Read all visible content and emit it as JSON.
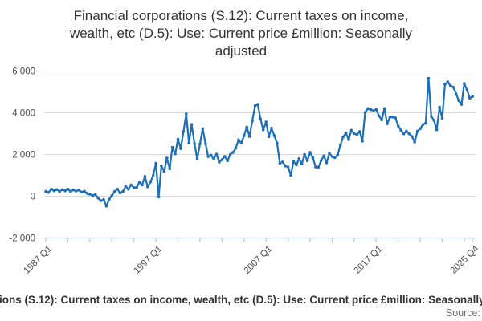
{
  "page": {
    "source_label": "Source:"
  },
  "chart_data": {
    "type": "line",
    "title": "Financial corporations (S.12): Current taxes on income, wealth, etc (D.5): Use: Current price £million: Seasonally adjusted",
    "title_lines": [
      "Financial corporations (S.12): Current taxes on income,",
      "wealth, etc (D.5): Use: Current price £million: Seasonally",
      "adjusted"
    ],
    "unit": "£million",
    "x_frequency": "quarterly",
    "x_range": [
      "1987 Q1",
      "2025 Q4"
    ],
    "ylim": [
      -2000,
      6000
    ],
    "y_ticks": [
      6000,
      4000,
      2000,
      0,
      -2000
    ],
    "y_tick_labels": [
      "6 000",
      "4 000",
      "2 000",
      "0",
      "-2 000"
    ],
    "x_tick_labels": [
      {
        "index": 0,
        "label": "1987 Q1"
      },
      {
        "index": 40,
        "label": "1997 Q1"
      },
      {
        "index": 80,
        "label": "2007 Q1"
      },
      {
        "index": 120,
        "label": "2017 Q1"
      },
      {
        "index": 155,
        "label": "2025 Q4"
      }
    ],
    "minor_tick_every_quarters": 8,
    "grid": "horizontal",
    "legend_position": "bottom",
    "colors": {
      "line": "#1d70b8",
      "grid": "#d9d9d9",
      "axis": "#aec6d8",
      "tick_text": "#4d4d4d",
      "title_text": "#333333",
      "source_text": "#707070"
    },
    "series": [
      {
        "name": "Financial corporations (S.12): Current taxes on income, wealth, etc (D.5): Use: Current price £million: Seasonally adjusted",
        "color": "#1d70b8",
        "values": [
          230,
          180,
          340,
          260,
          320,
          230,
          315,
          260,
          340,
          230,
          300,
          250,
          290,
          200,
          240,
          140,
          100,
          40,
          80,
          -85,
          -215,
          -160,
          -475,
          -155,
          40,
          230,
          340,
          155,
          230,
          470,
          340,
          540,
          410,
          420,
          665,
          540,
          950,
          450,
          680,
          1000,
          1580,
          -30,
          1450,
          1190,
          1830,
          1320,
          2345,
          2030,
          2730,
          2280,
          3100,
          3945,
          2550,
          3435,
          2520,
          1780,
          2500,
          3240,
          2520,
          1900,
          1970,
          1780,
          2010,
          1630,
          1750,
          1900,
          1700,
          2000,
          2100,
          2300,
          2700,
          2550,
          2900,
          3310,
          2860,
          3600,
          4330,
          4400,
          3700,
          3180,
          3560,
          2850,
          3260,
          2900,
          2550,
          1580,
          1640,
          1450,
          1400,
          1000,
          1680,
          1500,
          1800,
          1550,
          2000,
          1700,
          2100,
          1850,
          1400,
          1390,
          1700,
          1930,
          1600,
          2050,
          1900,
          1850,
          1970,
          2450,
          2840,
          3030,
          2710,
          3160,
          3000,
          2950,
          3100,
          2640,
          4010,
          4200,
          4150,
          4100,
          4150,
          3850,
          3660,
          4200,
          3470,
          3790,
          3800,
          3755,
          3370,
          3160,
          2990,
          3120,
          2990,
          2865,
          2600,
          3120,
          3240,
          3430,
          3500,
          5650,
          3830,
          3640,
          3180,
          4270,
          3730,
          5360,
          5480,
          5290,
          5230,
          4910,
          4590,
          4400,
          5400,
          5100,
          4700,
          4780
        ]
      }
    ]
  }
}
